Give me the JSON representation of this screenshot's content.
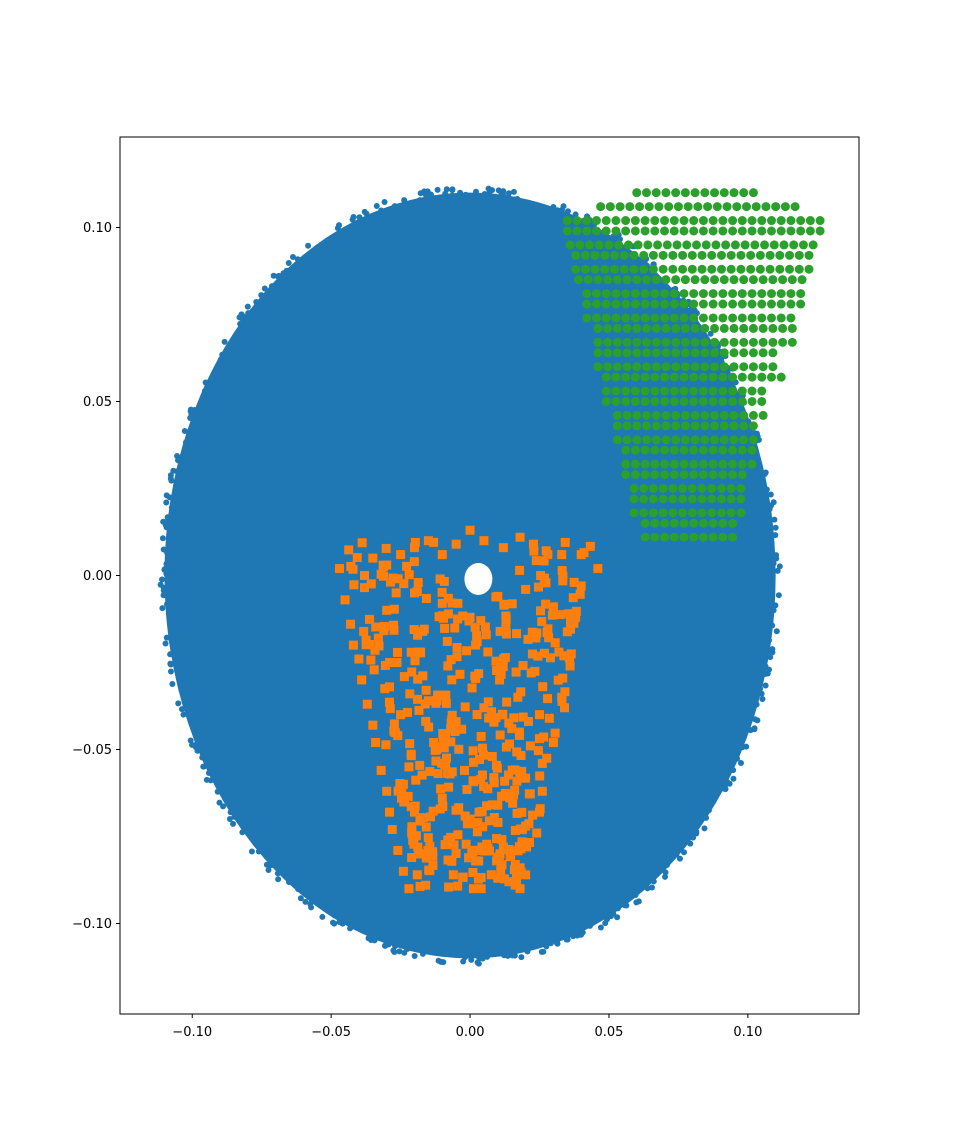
{
  "chart_data": {
    "type": "scatter",
    "title": "",
    "xlabel": "",
    "ylabel": "",
    "xlim": [
      -0.126,
      0.14
    ],
    "ylim": [
      -0.126,
      0.126
    ],
    "grid": false,
    "x_ticks": [
      {
        "value": -0.1,
        "label": "−0.10"
      },
      {
        "value": -0.05,
        "label": "−0.05"
      },
      {
        "value": 0.0,
        "label": "0.00"
      },
      {
        "value": 0.05,
        "label": "0.05"
      },
      {
        "value": 0.1,
        "label": "0.10"
      }
    ],
    "y_ticks": [
      {
        "value": -0.1,
        "label": "−0.10"
      },
      {
        "value": -0.05,
        "label": "−0.05"
      },
      {
        "value": 0.0,
        "label": "0.00"
      },
      {
        "value": 0.05,
        "label": "0.05"
      },
      {
        "value": 0.1,
        "label": "0.10"
      }
    ],
    "series": [
      {
        "marker": "circle",
        "color": "#1f77b4",
        "shape": "ellipse",
        "center": [
          0.0,
          0.0
        ],
        "radius_x": 0.11,
        "radius_y": 0.11,
        "approx_points": "dense (tens of thousands)"
      },
      {
        "marker": "square",
        "color": "#ff7f0e",
        "points": [
          [
            -0.047,
            0.002
          ],
          [
            -0.045,
            -0.007
          ],
          [
            -0.043,
            -0.014
          ],
          [
            -0.042,
            -0.02
          ],
          [
            -0.04,
            -0.024
          ],
          [
            -0.039,
            -0.03
          ],
          [
            -0.037,
            -0.037
          ],
          [
            -0.035,
            -0.043
          ],
          [
            -0.034,
            -0.048
          ],
          [
            -0.032,
            -0.056
          ],
          [
            -0.03,
            -0.062
          ],
          [
            -0.029,
            -0.068
          ],
          [
            -0.028,
            -0.073
          ],
          [
            -0.026,
            -0.079
          ],
          [
            -0.024,
            -0.085
          ],
          [
            -0.022,
            -0.09
          ],
          [
            -0.035,
            0.005
          ],
          [
            -0.03,
            0.003
          ],
          [
            -0.025,
            0.006
          ],
          [
            -0.02,
            0.008
          ],
          [
            -0.015,
            0.01
          ],
          [
            -0.01,
            0.006
          ],
          [
            -0.005,
            0.009
          ],
          [
            0.0,
            0.013
          ],
          [
            0.005,
            0.01
          ],
          [
            0.012,
            0.008
          ],
          [
            0.018,
            0.011
          ],
          [
            0.023,
            0.007
          ],
          [
            0.028,
            0.006
          ],
          [
            0.033,
            0.006
          ],
          [
            0.04,
            0.006
          ],
          [
            0.046,
            0.002
          ],
          [
            -0.03,
            -0.01
          ],
          [
            -0.02,
            -0.005
          ],
          [
            -0.01,
            -0.008
          ],
          [
            0.0,
            -0.012
          ],
          [
            0.01,
            -0.006
          ],
          [
            0.02,
            -0.004
          ],
          [
            0.03,
            -0.009
          ],
          [
            0.04,
            -0.003
          ],
          [
            -0.028,
            -0.025
          ],
          [
            -0.018,
            -0.022
          ],
          [
            -0.008,
            -0.026
          ],
          [
            0.002,
            -0.02
          ],
          [
            0.012,
            -0.024
          ],
          [
            0.022,
            -0.028
          ],
          [
            0.032,
            -0.022
          ],
          [
            -0.025,
            -0.04
          ],
          [
            -0.015,
            -0.036
          ],
          [
            -0.005,
            -0.042
          ],
          [
            0.005,
            -0.038
          ],
          [
            0.015,
            -0.044
          ],
          [
            0.025,
            -0.04
          ],
          [
            0.033,
            -0.035
          ],
          [
            -0.022,
            -0.055
          ],
          [
            -0.012,
            -0.05
          ],
          [
            -0.002,
            -0.056
          ],
          [
            0.008,
            -0.052
          ],
          [
            0.018,
            -0.058
          ],
          [
            0.026,
            -0.054
          ],
          [
            -0.02,
            -0.068
          ],
          [
            -0.01,
            -0.064
          ],
          [
            0.0,
            -0.07
          ],
          [
            0.01,
            -0.066
          ],
          [
            0.02,
            -0.072
          ],
          [
            0.025,
            -0.068
          ],
          [
            -0.018,
            -0.08
          ],
          [
            -0.008,
            -0.076
          ],
          [
            0.002,
            -0.082
          ],
          [
            0.012,
            -0.078
          ],
          [
            0.018,
            -0.084
          ],
          [
            -0.016,
            -0.089
          ],
          [
            -0.006,
            -0.086
          ],
          [
            0.004,
            -0.09
          ],
          [
            0.014,
            -0.088
          ],
          [
            0.038,
            -0.012
          ],
          [
            0.036,
            -0.026
          ],
          [
            0.034,
            -0.038
          ],
          [
            0.03,
            -0.048
          ],
          [
            0.026,
            -0.062
          ],
          [
            0.024,
            -0.074
          ],
          [
            0.02,
            -0.086
          ],
          [
            0.018,
            -0.09
          ],
          [
            -0.038,
            0.0
          ],
          [
            -0.033,
            -0.018
          ],
          [
            -0.029,
            -0.032
          ],
          [
            -0.026,
            -0.046
          ],
          [
            -0.024,
            -0.06
          ],
          [
            -0.021,
            -0.074
          ],
          [
            -0.019,
            -0.086
          ]
        ]
      },
      {
        "marker": "circle",
        "color": "#2ca02c",
        "grid": {
          "rows": [
            {
              "y": 0.11,
              "x_start": 0.06,
              "x_end": 0.102
            },
            {
              "y": 0.106,
              "x_start": 0.047,
              "x_end": 0.12
            },
            {
              "y": 0.102,
              "x_start": 0.035,
              "x_end": 0.128
            },
            {
              "y": 0.099,
              "x_start": 0.035,
              "x_end": 0.128
            },
            {
              "y": 0.095,
              "x_start": 0.036,
              "x_end": 0.124
            },
            {
              "y": 0.092,
              "x_start": 0.038,
              "x_end": 0.124
            },
            {
              "y": 0.088,
              "x_start": 0.038,
              "x_end": 0.124
            },
            {
              "y": 0.085,
              "x_start": 0.039,
              "x_end": 0.12
            },
            {
              "y": 0.081,
              "x_start": 0.042,
              "x_end": 0.12
            },
            {
              "y": 0.078,
              "x_start": 0.042,
              "x_end": 0.12
            },
            {
              "y": 0.074,
              "x_start": 0.042,
              "x_end": 0.116
            },
            {
              "y": 0.071,
              "x_start": 0.046,
              "x_end": 0.116
            },
            {
              "y": 0.067,
              "x_start": 0.046,
              "x_end": 0.116
            },
            {
              "y": 0.064,
              "x_start": 0.046,
              "x_end": 0.112
            },
            {
              "y": 0.06,
              "x_start": 0.046,
              "x_end": 0.112
            },
            {
              "y": 0.057,
              "x_start": 0.049,
              "x_end": 0.112
            },
            {
              "y": 0.053,
              "x_start": 0.049,
              "x_end": 0.108
            },
            {
              "y": 0.05,
              "x_start": 0.049,
              "x_end": 0.108
            },
            {
              "y": 0.046,
              "x_start": 0.053,
              "x_end": 0.108
            },
            {
              "y": 0.043,
              "x_start": 0.053,
              "x_end": 0.104
            },
            {
              "y": 0.039,
              "x_start": 0.053,
              "x_end": 0.104
            },
            {
              "y": 0.036,
              "x_start": 0.056,
              "x_end": 0.104
            },
            {
              "y": 0.032,
              "x_start": 0.056,
              "x_end": 0.104
            },
            {
              "y": 0.029,
              "x_start": 0.056,
              "x_end": 0.1
            },
            {
              "y": 0.025,
              "x_start": 0.059,
              "x_end": 0.1
            },
            {
              "y": 0.022,
              "x_start": 0.059,
              "x_end": 0.1
            },
            {
              "y": 0.018,
              "x_start": 0.059,
              "x_end": 0.1
            },
            {
              "y": 0.015,
              "x_start": 0.063,
              "x_end": 0.096
            },
            {
              "y": 0.011,
              "x_start": 0.063,
              "x_end": 0.096
            }
          ],
          "spacing_x": 0.0035
        }
      }
    ]
  }
}
